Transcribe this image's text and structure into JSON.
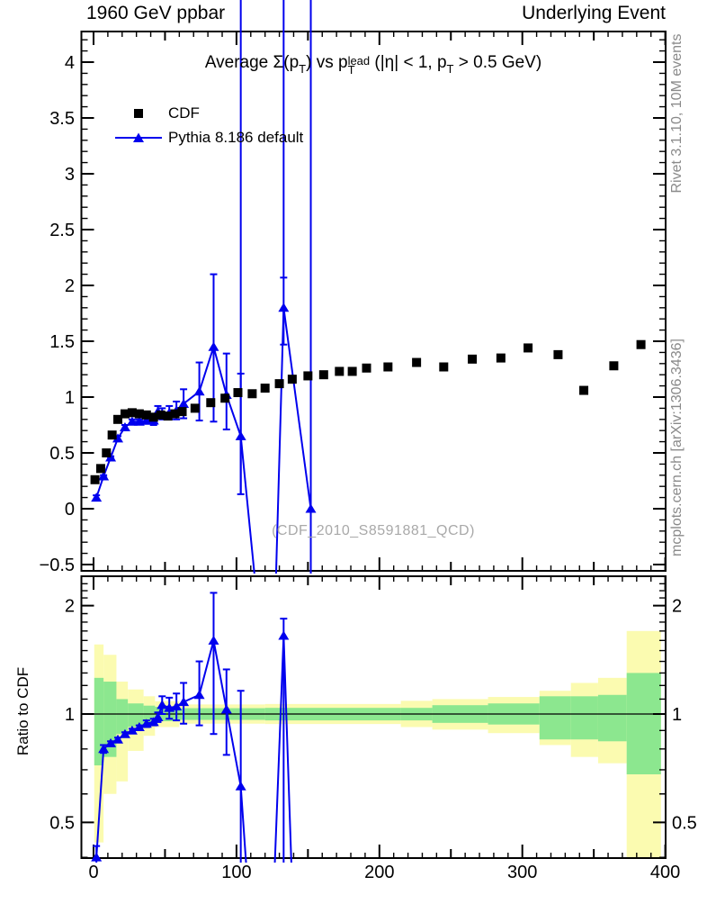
{
  "header": {
    "left": "1960 GeV ppbar",
    "right": "Underlying Event"
  },
  "title_segments": [
    {
      "s": "n",
      "t": "Average "
    },
    {
      "s": "n",
      "t": "Σ(p"
    },
    {
      "s": "sub",
      "t": "T"
    },
    {
      "s": "n",
      "t": ") vs p"
    },
    {
      "s": "stack",
      "top": "lead",
      "bot": "T"
    },
    {
      "s": "n",
      "t": " (|η| < 1, p"
    },
    {
      "s": "sub",
      "t": "T"
    },
    {
      "s": "n",
      "t": " > 0.5 GeV)"
    }
  ],
  "legend": {
    "items": [
      {
        "label": "CDF"
      },
      {
        "label": "Pythia 8.186 default"
      }
    ]
  },
  "watermark": "(CDF_2010_S8591881_QCD)",
  "side_notes": {
    "top": "Rivet 3.1.10,  10M events",
    "bottom": "mcplots.cern.ch [arXiv:1306.3436]"
  },
  "ratio_axis_label": "Ratio to CDF",
  "colors": {
    "blue": "#0000EE",
    "black": "#000000",
    "band_green": "#8CE78F",
    "band_yellow": "#FBFBB0",
    "gray_text": "#8A8A8A",
    "watermark_gray": "#A9A9A9"
  },
  "chart_data": {
    "type": "scatter-with-ratio",
    "title": "Average Σ(p_T) vs p_T^lead (|η| < 1, p_T > 0.5 GeV)",
    "xlim": [
      -8.4,
      400
    ],
    "main_ylim": [
      -0.556,
      4.274
    ],
    "ratio_ylim": [
      0.398,
      2.413
    ],
    "ratio_yscale": "log",
    "grid": false,
    "legend_position": "top-left",
    "x_ticks": {
      "vals": [
        0,
        100,
        200,
        300,
        400
      ],
      "labels": [
        "0",
        "100",
        "200",
        "300",
        "400"
      ]
    },
    "main_y_ticks": {
      "vals": [
        4,
        3.5,
        3,
        2.5,
        2,
        1.5,
        1,
        0.5,
        0,
        -0.5
      ],
      "labels": [
        "4",
        "3.5",
        "3",
        "2.5",
        "2",
        "1.5",
        "1",
        "0.5",
        "0",
        "−0.5"
      ]
    },
    "ratio_y_ticks": {
      "vals": [
        2,
        1,
        0.5
      ],
      "labels": [
        "2",
        "1",
        "0.5"
      ]
    },
    "series": [
      {
        "name": "CDF",
        "marker": "square",
        "color": "#000000",
        "x": [
          1,
          5,
          9,
          13,
          17,
          22,
          27,
          32,
          37,
          42,
          47,
          52,
          57,
          62,
          71,
          82,
          92,
          101,
          111,
          120,
          130,
          139,
          150,
          161,
          172,
          181,
          191,
          206,
          226,
          245,
          265,
          285,
          304,
          325,
          343,
          364,
          383
        ],
        "y": [
          0.26,
          0.36,
          0.5,
          0.66,
          0.8,
          0.85,
          0.86,
          0.85,
          0.84,
          0.82,
          0.84,
          0.83,
          0.85,
          0.87,
          0.9,
          0.95,
          0.99,
          1.04,
          1.03,
          1.08,
          1.12,
          1.16,
          1.19,
          1.2,
          1.23,
          1.23,
          1.26,
          1.27,
          1.31,
          1.27,
          1.34,
          1.35,
          1.44,
          1.38,
          1.06,
          1.28,
          1.47
        ]
      },
      {
        "name": "Pythia 8.186 default",
        "marker": "triangle",
        "color": "#0000EE",
        "x": [
          2,
          7,
          12,
          17,
          22,
          27,
          32,
          37,
          42,
          45,
          48,
          53,
          58,
          63,
          74,
          84,
          93,
          103,
          115,
          127,
          133,
          152
        ],
        "y": [
          0.1,
          0.29,
          0.46,
          0.63,
          0.73,
          0.78,
          0.78,
          0.79,
          0.79,
          0.87,
          0.85,
          0.86,
          0.88,
          0.94,
          1.05,
          1.45,
          1.02,
          0.65,
          -0.9,
          -0.9,
          1.8,
          0.0
        ],
        "err_lo": [
          0.02,
          0.01,
          0.01,
          0.02,
          0.02,
          0.02,
          0.02,
          0.03,
          0.04,
          0.05,
          0.05,
          0.06,
          0.08,
          0.13,
          0.26,
          0.67,
          0.31,
          0.52,
          0,
          0,
          0.33,
          2.0
        ],
        "err_hi": [
          0.02,
          0.01,
          0.01,
          0.02,
          0.02,
          0.02,
          0.02,
          0.03,
          0.04,
          0.05,
          0.05,
          0.06,
          0.08,
          0.13,
          0.26,
          0.65,
          0.37,
          0.56,
          0,
          0,
          0.27,
          5.2
        ],
        "spikes": [
          {
            "x": 103,
            "down_to": 0.13
          },
          {
            "x": 133,
            "down_to": 2.07
          }
        ]
      }
    ],
    "ratio": {
      "x": [
        2,
        7,
        12,
        17,
        22,
        27,
        32,
        37,
        42,
        45,
        48,
        53,
        58,
        63,
        74,
        84,
        93,
        103,
        110,
        125,
        133,
        140
      ],
      "r": [
        0.4,
        0.8,
        0.83,
        0.85,
        0.88,
        0.9,
        0.92,
        0.94,
        0.95,
        0.98,
        1.06,
        1.04,
        1.05,
        1.08,
        1.13,
        1.6,
        1.03,
        0.63,
        0.25,
        0.25,
        1.65,
        0.25
      ],
      "err_lo": [
        0.03,
        0.02,
        0.01,
        0.01,
        0.01,
        0.01,
        0.01,
        0.02,
        0.02,
        0.03,
        0.06,
        0.07,
        0.09,
        0.14,
        0.2,
        0.72,
        0.26,
        0.33,
        0,
        0,
        1.4,
        0
      ],
      "err_hi": [
        0.03,
        0.02,
        0.01,
        0.01,
        0.01,
        0.01,
        0.01,
        0.02,
        0.02,
        0.03,
        0.06,
        0.07,
        0.09,
        0.14,
        0.27,
        0.57,
        0.3,
        0.53,
        0,
        0,
        0.19,
        0
      ]
    },
    "ratio_bands": [
      {
        "x0": 0.5,
        "x1": 7,
        "green": [
          0.72,
          1.26
        ],
        "yellow": [
          0.44,
          1.56
        ]
      },
      {
        "x0": 7,
        "x1": 16,
        "green": [
          0.76,
          1.23
        ],
        "yellow": [
          0.6,
          1.46
        ]
      },
      {
        "x0": 16,
        "x1": 24,
        "green": [
          0.88,
          1.1
        ],
        "yellow": [
          0.65,
          1.23
        ]
      },
      {
        "x0": 24,
        "x1": 35,
        "green": [
          0.92,
          1.07
        ],
        "yellow": [
          0.79,
          1.17
        ]
      },
      {
        "x0": 35,
        "x1": 43,
        "green": [
          0.94,
          1.055
        ],
        "yellow": [
          0.87,
          1.12
        ]
      },
      {
        "x0": 43,
        "x1": 60,
        "green": [
          0.955,
          1.047
        ],
        "yellow": [
          0.92,
          1.085
        ]
      },
      {
        "x0": 60,
        "x1": 120,
        "green": [
          0.963,
          1.038
        ],
        "yellow": [
          0.94,
          1.063
        ]
      },
      {
        "x0": 120,
        "x1": 215,
        "green": [
          0.96,
          1.04
        ],
        "yellow": [
          0.938,
          1.066
        ]
      },
      {
        "x0": 215,
        "x1": 237,
        "green": [
          0.96,
          1.04
        ],
        "yellow": [
          0.92,
          1.088
        ]
      },
      {
        "x0": 237,
        "x1": 276,
        "green": [
          0.945,
          1.058
        ],
        "yellow": [
          0.905,
          1.1
        ]
      },
      {
        "x0": 276,
        "x1": 312,
        "green": [
          0.935,
          1.07
        ],
        "yellow": [
          0.885,
          1.115
        ]
      },
      {
        "x0": 312,
        "x1": 334,
        "green": [
          0.85,
          1.12
        ],
        "yellow": [
          0.82,
          1.16
        ]
      },
      {
        "x0": 334,
        "x1": 353,
        "green": [
          0.85,
          1.12
        ],
        "yellow": [
          0.76,
          1.22
        ]
      },
      {
        "x0": 353,
        "x1": 373,
        "green": [
          0.84,
          1.13
        ],
        "yellow": [
          0.73,
          1.26
        ]
      },
      {
        "x0": 373,
        "x1": 397,
        "green": [
          0.68,
          1.3
        ],
        "yellow": [
          0.4,
          1.7
        ]
      }
    ]
  }
}
